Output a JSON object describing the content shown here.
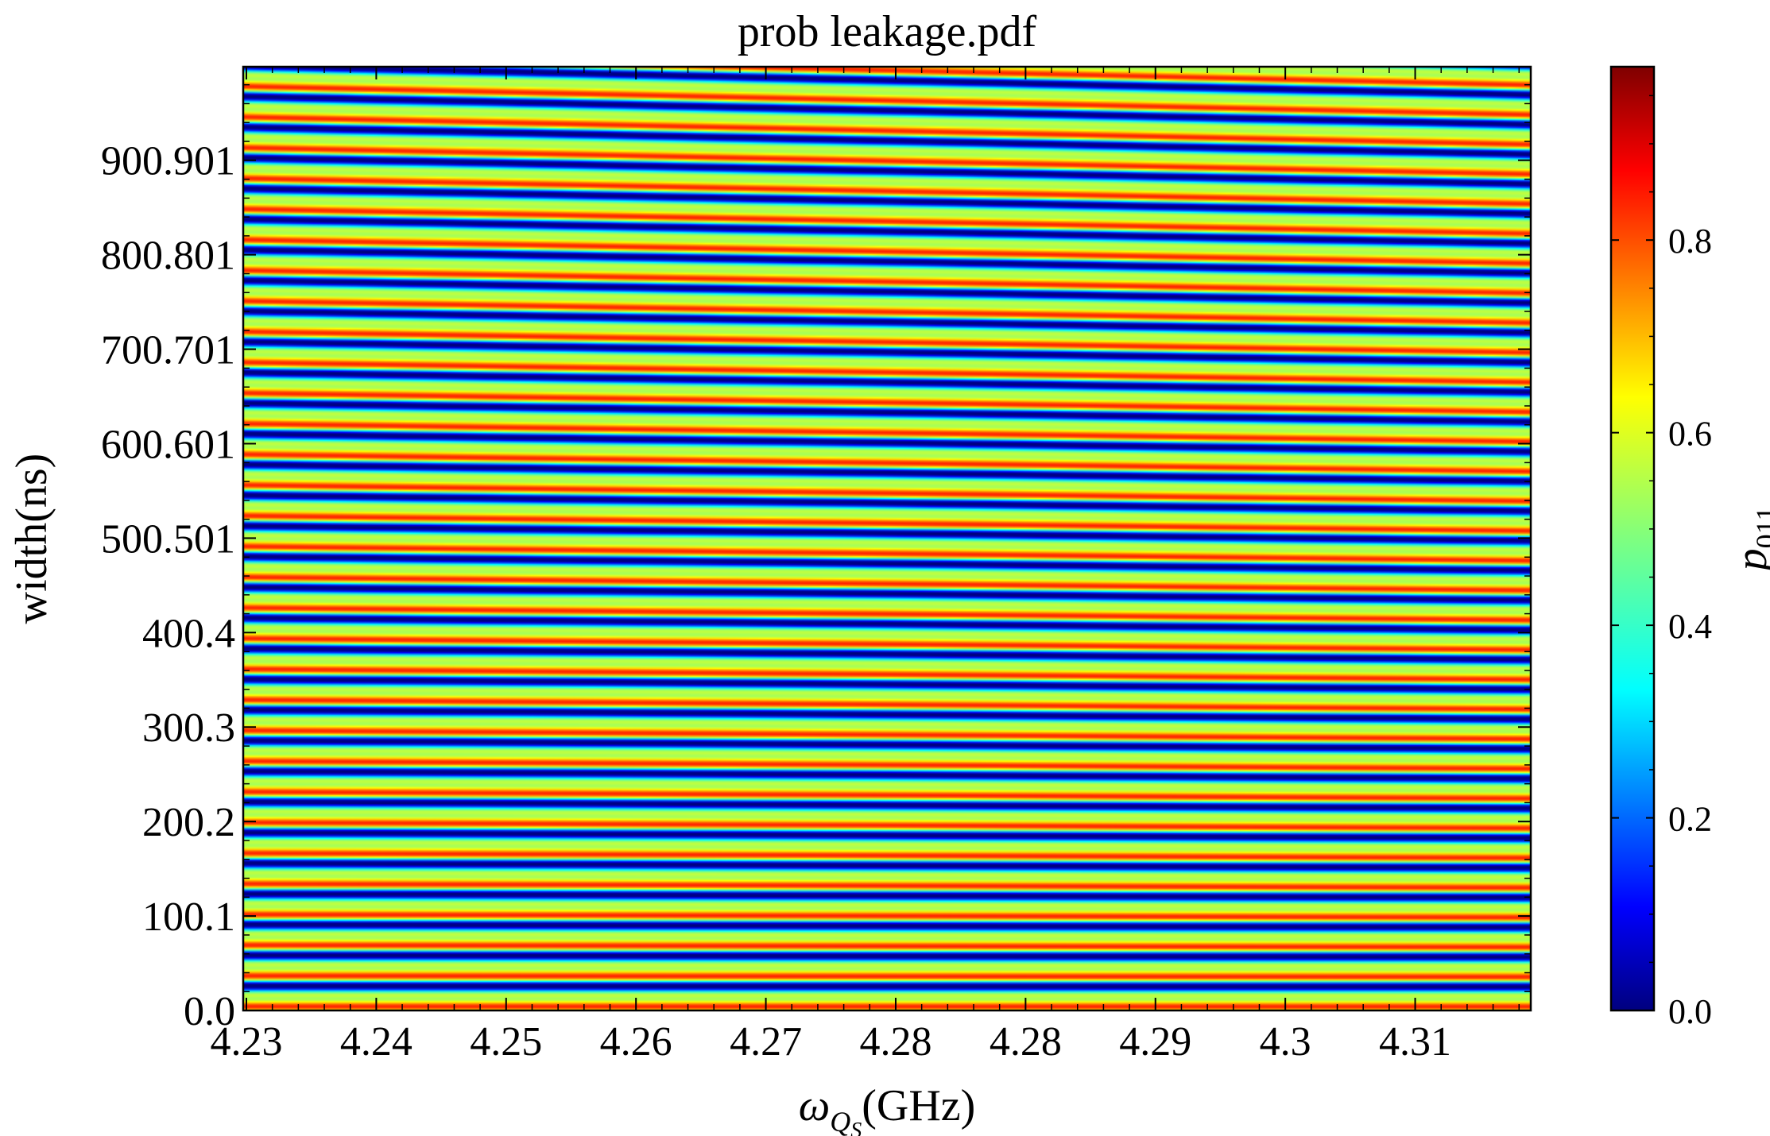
{
  "chart_data": {
    "type": "heatmap",
    "title": "prob leakage.pdf",
    "xlabel": {
      "symbol": "ω",
      "sub": "Q",
      "subsub": "S",
      "unit": "(GHz)"
    },
    "ylabel": "width(ns)",
    "colorbar_label": {
      "symbol": "p",
      "sub": "011"
    },
    "x_tick_labels": [
      "4.23",
      "4.24",
      "4.25",
      "4.26",
      "4.27",
      "4.28",
      "4.28",
      "4.29",
      "4.3",
      "4.31"
    ],
    "y_tick_labels": [
      "0.0",
      "100.1",
      "200.2",
      "300.3",
      "400.4",
      "500.501",
      "600.601",
      "700.701",
      "800.801",
      "900.901"
    ],
    "y_tick_values": [
      0.0,
      100.1,
      200.2,
      300.3,
      400.4,
      500.501,
      600.601,
      700.701,
      800.801,
      900.901
    ],
    "ylim": [
      0,
      1000
    ],
    "xlim": [
      4.23,
      4.32
    ],
    "colorbar_tick_labels": [
      "0.0",
      "0.2",
      "0.4",
      "0.6",
      "0.8"
    ],
    "colorbar_tick_values": [
      0.0,
      0.2,
      0.4,
      0.6,
      0.8
    ],
    "colorbar_range": [
      0.0,
      0.98
    ],
    "colormap": "jet",
    "grid": false,
    "pattern": {
      "description_free": true,
      "period_ns_low_x": 32.5,
      "period_ns_high_x": 31.5,
      "min_value": 0.0,
      "max_value": 0.98
    }
  }
}
